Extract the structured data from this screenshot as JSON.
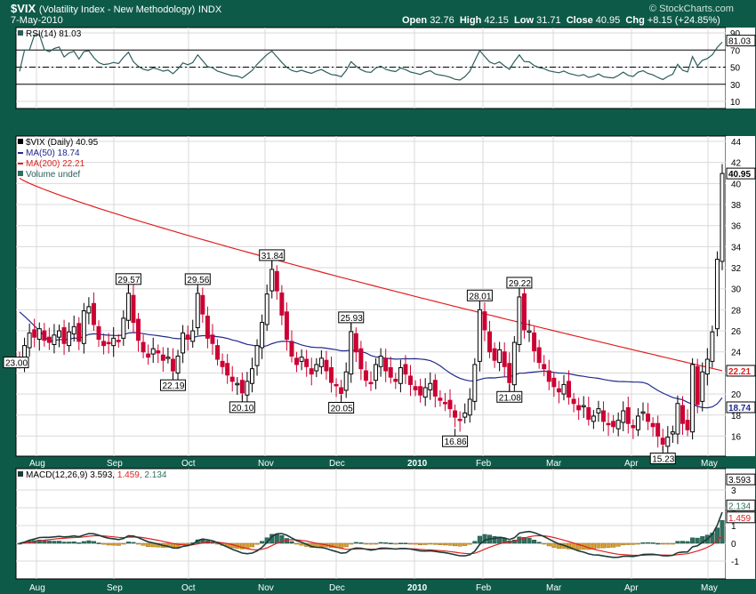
{
  "header": {
    "symbol": "$VIX",
    "name": "(Volatility Index - New Methodology)",
    "exchange": "INDX",
    "date": "7-May-2010",
    "brand": "© StockCharts.com",
    "open_label": "Open",
    "open": "32.76",
    "high_label": "High",
    "high": "42.15",
    "low_label": "Low",
    "low": "31.71",
    "close_label": "Close",
    "close": "40.95",
    "chg_label": "Chg",
    "chg": "+8.15 (+24.85%)"
  },
  "colors": {
    "frame": "#0e5a48",
    "grid": "#d9d9d9",
    "up_candle": "#000000",
    "down_candle": "#cc0033",
    "ma50": "#1f2a8a",
    "ma200": "#e02020",
    "rsi_line": "#2b5e5a",
    "macd_line": "#1c3c38",
    "signal_line": "#e02020",
    "hist_pos": "#2f6f5f",
    "hist_neg": "#d7a034"
  },
  "rsi": {
    "label": "RSI(14) 81.03",
    "last": 81.03,
    "ticks": [
      "90",
      "70",
      "50",
      "30",
      "10"
    ],
    "overbought": 70,
    "oversold": 30
  },
  "price": {
    "legend_title": "$VIX (Daily) 40.95",
    "legend_ma50": "MA(50) 18.74",
    "legend_ma200": "MA(200) 22.21",
    "legend_volume": "Volume undef",
    "ticks": [
      "44",
      "42",
      "40",
      "38",
      "36",
      "34",
      "32",
      "30",
      "28",
      "26",
      "24",
      "22",
      "20",
      "18",
      "16"
    ],
    "last_close_tag": "40.95",
    "ma200_tag": "22.21",
    "ma50_tag": "18.74",
    "ylim": [
      14.6,
      44
    ]
  },
  "macd": {
    "label_prefix": "MACD(12,26,9)",
    "macd_val": "3.593",
    "signal_val": "1.459",
    "hist_val": "2.134",
    "ticks": [
      "3",
      "2",
      "1",
      "0",
      "-1"
    ],
    "ylim": [
      -1.8,
      4.0
    ]
  },
  "x_months": [
    "Aug",
    "Sep",
    "Oct",
    "Nov",
    "Dec",
    "2010",
    "Feb",
    "Mar",
    "Apr",
    "May"
  ],
  "chart_data": {
    "type": "candlestick",
    "title": "$VIX (Volatility Index - New Methodology) INDX",
    "x_labels": [
      "Aug",
      "Sep",
      "Oct",
      "Nov",
      "Dec",
      "2010",
      "Feb",
      "Mar",
      "Apr",
      "May"
    ],
    "ohlc_close_points": [
      [
        0,
        23.0
      ],
      [
        1,
        24.6
      ],
      [
        2,
        25.8
      ],
      [
        3,
        25.4
      ],
      [
        4,
        26.2
      ],
      [
        5,
        25.1
      ],
      [
        6,
        24.9
      ],
      [
        7,
        25.6
      ],
      [
        8,
        26.0
      ],
      [
        9,
        24.8
      ],
      [
        10,
        25.9
      ],
      [
        11,
        26.4
      ],
      [
        12,
        25.0
      ],
      [
        13,
        27.9
      ],
      [
        14,
        28.3
      ],
      [
        15,
        26.6
      ],
      [
        16,
        25.2
      ],
      [
        17,
        24.6
      ],
      [
        18,
        24.8
      ],
      [
        19,
        25.3
      ],
      [
        20,
        25.0
      ],
      [
        21,
        27.2
      ],
      [
        22,
        29.57
      ],
      [
        23,
        26.8
      ],
      [
        24,
        25.1
      ],
      [
        25,
        24.0
      ],
      [
        26,
        23.5
      ],
      [
        27,
        24.3
      ],
      [
        28,
        23.9
      ],
      [
        29,
        23.2
      ],
      [
        30,
        23.5
      ],
      [
        31,
        22.19
      ],
      [
        32,
        23.6
      ],
      [
        33,
        25.8
      ],
      [
        34,
        25.2
      ],
      [
        35,
        26.0
      ],
      [
        36,
        29.56
      ],
      [
        37,
        27.6
      ],
      [
        38,
        25.3
      ],
      [
        39,
        24.8
      ],
      [
        40,
        23.3
      ],
      [
        41,
        22.6
      ],
      [
        42,
        21.8
      ],
      [
        43,
        21.2
      ],
      [
        44,
        21.0
      ],
      [
        45,
        20.1
      ],
      [
        46,
        21.2
      ],
      [
        47,
        22.4
      ],
      [
        48,
        24.6
      ],
      [
        49,
        26.8
      ],
      [
        50,
        29.5
      ],
      [
        51,
        31.84
      ],
      [
        52,
        29.8
      ],
      [
        53,
        27.5
      ],
      [
        54,
        25.2
      ],
      [
        55,
        23.6
      ],
      [
        56,
        22.8
      ],
      [
        57,
        23.5
      ],
      [
        58,
        22.6
      ],
      [
        59,
        21.9
      ],
      [
        60,
        22.8
      ],
      [
        61,
        23.4
      ],
      [
        62,
        22.2
      ],
      [
        63,
        21.1
      ],
      [
        64,
        20.8
      ],
      [
        65,
        20.05
      ],
      [
        66,
        22.1
      ],
      [
        67,
        25.93
      ],
      [
        68,
        24.0
      ],
      [
        69,
        22.4
      ],
      [
        70,
        21.3
      ],
      [
        71,
        21.0
      ],
      [
        72,
        22.8
      ],
      [
        73,
        23.6
      ],
      [
        74,
        22.2
      ],
      [
        75,
        21.6
      ],
      [
        76,
        21.2
      ],
      [
        77,
        22.5
      ],
      [
        78,
        21.9
      ],
      [
        79,
        20.9
      ],
      [
        80,
        20.4
      ],
      [
        81,
        19.9
      ],
      [
        82,
        20.6
      ],
      [
        83,
        21.0
      ],
      [
        84,
        19.8
      ],
      [
        85,
        19.4
      ],
      [
        86,
        19.1
      ],
      [
        87,
        18.6
      ],
      [
        88,
        17.8
      ],
      [
        89,
        17.5
      ],
      [
        90,
        18.2
      ],
      [
        91,
        19.5
      ],
      [
        92,
        22.8
      ],
      [
        93,
        28.01
      ],
      [
        94,
        26.1
      ],
      [
        95,
        24.0
      ],
      [
        96,
        23.2
      ],
      [
        97,
        24.2
      ],
      [
        98,
        22.6
      ],
      [
        99,
        21.08
      ],
      [
        100,
        24.9
      ],
      [
        101,
        29.22
      ],
      [
        102,
        26.1
      ],
      [
        103,
        26.0
      ],
      [
        104,
        24.1
      ],
      [
        105,
        23.0
      ],
      [
        106,
        22.4
      ],
      [
        107,
        21.2
      ],
      [
        108,
        20.7
      ],
      [
        109,
        20.2
      ],
      [
        110,
        20.9
      ],
      [
        111,
        19.7
      ],
      [
        112,
        19.1
      ],
      [
        113,
        18.5
      ],
      [
        114,
        18.9
      ],
      [
        115,
        17.6
      ],
      [
        116,
        17.9
      ],
      [
        117,
        18.6
      ],
      [
        118,
        17.4
      ],
      [
        119,
        17.1
      ],
      [
        120,
        16.9
      ],
      [
        121,
        17.5
      ],
      [
        122,
        18.4
      ],
      [
        123,
        17.2
      ],
      [
        124,
        16.8
      ],
      [
        125,
        17.9
      ],
      [
        126,
        18.3
      ],
      [
        127,
        17.4
      ],
      [
        128,
        16.9
      ],
      [
        129,
        16.0
      ],
      [
        130,
        15.23
      ],
      [
        131,
        15.9
      ],
      [
        132,
        16.4
      ],
      [
        133,
        19.1
      ],
      [
        134,
        17.2
      ],
      [
        135,
        16.6
      ],
      [
        136,
        22.8
      ],
      [
        137,
        19.0
      ],
      [
        138,
        22.1
      ],
      [
        139,
        23.3
      ],
      [
        140,
        25.9
      ],
      [
        141,
        32.8
      ],
      [
        142,
        40.95
      ]
    ],
    "series": [
      {
        "name": "MA(50)",
        "last": 18.74
      },
      {
        "name": "MA(200)",
        "last": 22.21
      }
    ],
    "annotations": [
      {
        "x": 22,
        "y": 29.57,
        "label": "29.57"
      },
      {
        "x": 31,
        "y": 22.19,
        "label": "22.19"
      },
      {
        "x": 36,
        "y": 29.56,
        "label": "29.56"
      },
      {
        "x": 45,
        "y": 20.1,
        "label": "20.10"
      },
      {
        "x": 51,
        "y": 31.84,
        "label": "31.84"
      },
      {
        "x": 65,
        "y": 20.05,
        "label": "20.05"
      },
      {
        "x": 67,
        "y": 25.93,
        "label": "25.93"
      },
      {
        "x": 88,
        "y": 16.86,
        "label": "16.86"
      },
      {
        "x": 93,
        "y": 28.01,
        "label": "28.01"
      },
      {
        "x": 99,
        "y": 21.08,
        "label": "21.08"
      },
      {
        "x": 101,
        "y": 29.22,
        "label": "29.22"
      },
      {
        "x": 130,
        "y": 15.23,
        "label": "15.23"
      },
      {
        "x": 0,
        "y": 23.0,
        "label": "23.00"
      }
    ],
    "ylim": [
      14.6,
      44
    ],
    "grid": true
  }
}
